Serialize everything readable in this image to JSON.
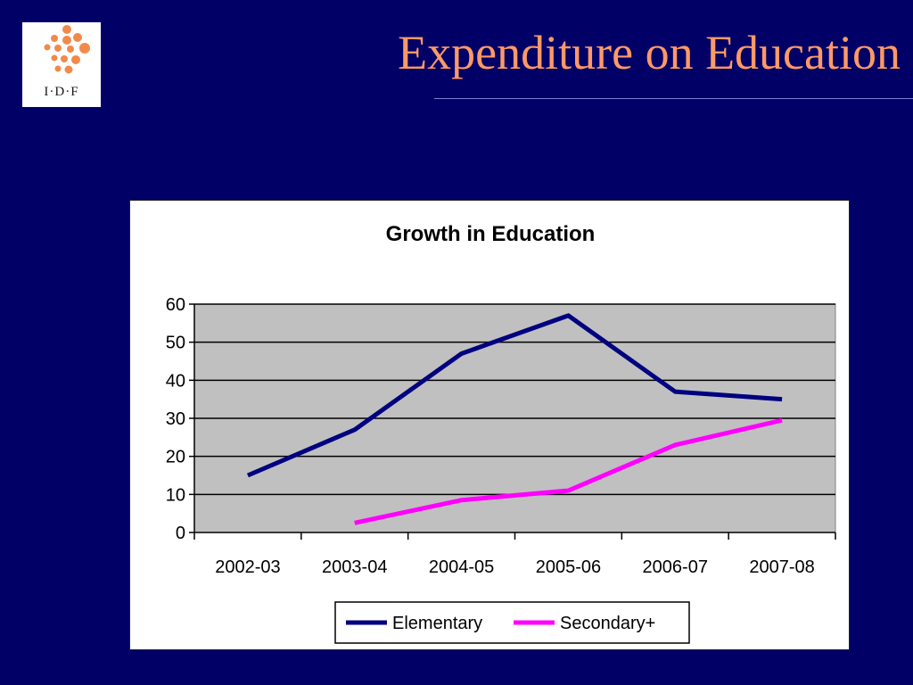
{
  "slide": {
    "title": "Expenditure on Education",
    "logo_text": "I·D·F",
    "accent_color": "#ff9966",
    "background_color": "#000066"
  },
  "chart_data": {
    "type": "line",
    "title": "Growth in Education",
    "xlabel": "",
    "ylabel": "",
    "categories": [
      "2002-03",
      "2003-04",
      "2004-05",
      "2005-06",
      "2006-07",
      "2007-08"
    ],
    "ylim": [
      0,
      60
    ],
    "yticks": [
      0,
      10,
      20,
      30,
      40,
      50,
      60
    ],
    "grid": true,
    "legend": "bottom",
    "plot_background": "#c0c0c0",
    "series": [
      {
        "name": "Elementary",
        "color": "#000080",
        "values": [
          15,
          27,
          47,
          57,
          37,
          35
        ]
      },
      {
        "name": "Secondary+",
        "color": "#ff00ff",
        "values": [
          null,
          2.5,
          8.5,
          11,
          23,
          29.5
        ]
      }
    ]
  }
}
